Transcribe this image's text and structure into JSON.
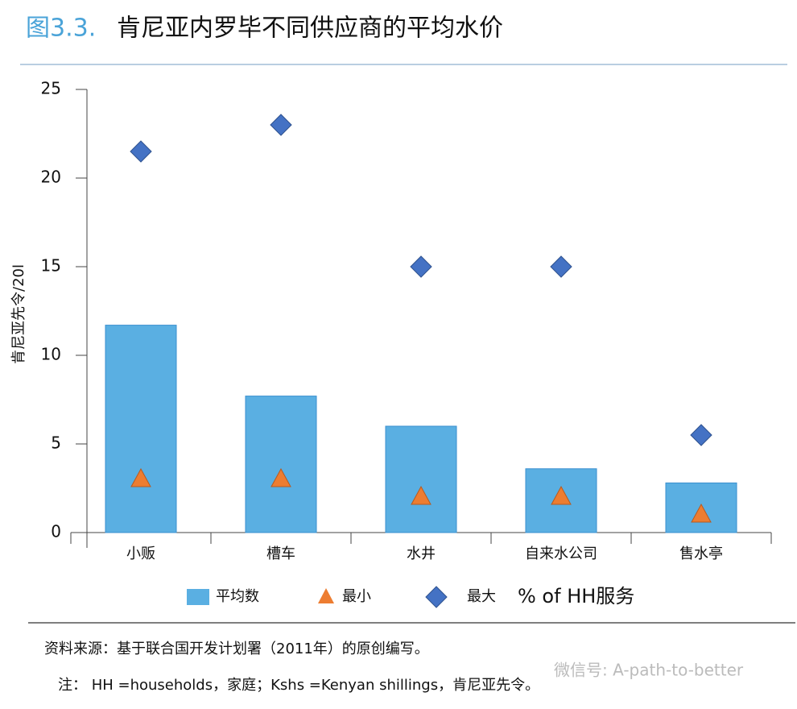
{
  "chart_data": {
    "type": "bar",
    "figure_label": "图3.3.",
    "title": "肯尼亚内罗毕不同供应商的平均水价",
    "y_label": "肯尼亚先令/20l",
    "categories": [
      "小贩",
      "槽车",
      "水井",
      "自来水公司",
      "售水亭"
    ],
    "series": [
      {
        "name": "平均数",
        "marker": "bar",
        "color": "#5aafe2",
        "values": [
          11.7,
          7.7,
          6.0,
          3.6,
          2.8
        ]
      },
      {
        "name": "最小",
        "marker": "triangle",
        "color": "#ed7d31",
        "values": [
          3,
          3,
          2,
          2,
          1
        ]
      },
      {
        "name": "最大",
        "marker": "diamond",
        "color": "#4472c4",
        "values": [
          21.5,
          23,
          15,
          15,
          5.5
        ]
      }
    ],
    "legend_note": "% of HH服务",
    "ylim": [
      0,
      25
    ],
    "yticks": [
      0,
      5,
      10,
      15,
      20,
      25
    ],
    "source": "资料来源：基于联合国开发计划署（2011年）的原创编写。",
    "note": "注： HH =households，家庭；Kshs =Kenyan shillings，肯尼亚先令。",
    "watermark": "微信号: A-path-to-better"
  }
}
